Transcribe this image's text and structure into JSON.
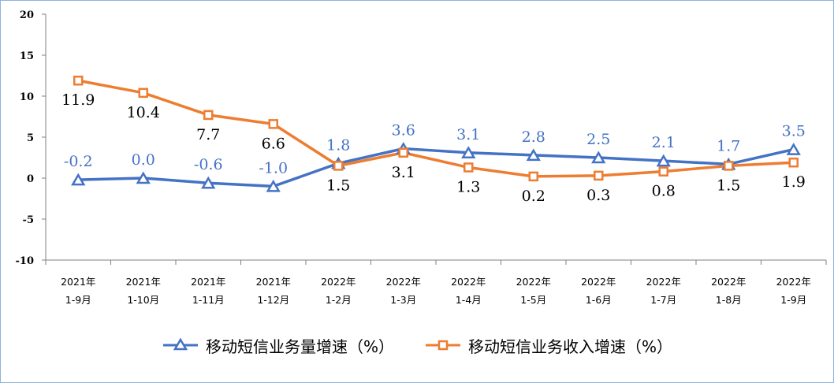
{
  "chart_data": {
    "type": "line",
    "categories": [
      [
        "2021年",
        "1-9月"
      ],
      [
        "2021年",
        "1-10月"
      ],
      [
        "2021年",
        "1-11月"
      ],
      [
        "2021年",
        "1-12月"
      ],
      [
        "2022年",
        "1-2月"
      ],
      [
        "2022年",
        "1-3月"
      ],
      [
        "2022年",
        "1-4月"
      ],
      [
        "2022年",
        "1-5月"
      ],
      [
        "2022年",
        "1-6月"
      ],
      [
        "2022年",
        "1-7月"
      ],
      [
        "2022年",
        "1-8月"
      ],
      [
        "2022年",
        "1-9月"
      ]
    ],
    "series": [
      {
        "name": "移动短信业务量增速（%）",
        "values": [
          -0.2,
          0.0,
          -0.6,
          -1.0,
          1.8,
          3.6,
          3.1,
          2.8,
          2.5,
          2.1,
          1.7,
          3.5
        ],
        "labels": [
          "-0.2",
          "0.0",
          "-0.6",
          "-1.0",
          "1.8",
          "3.6",
          "3.1",
          "2.8",
          "2.5",
          "2.1",
          "1.7",
          "3.5"
        ],
        "color": "#4472c4",
        "marker": "triangle"
      },
      {
        "name": "移动短信业务收入增速（%）",
        "values": [
          11.9,
          10.4,
          7.7,
          6.6,
          1.5,
          3.1,
          1.3,
          0.2,
          0.3,
          0.8,
          1.5,
          1.9
        ],
        "labels": [
          "11.9",
          "10.4",
          "7.7",
          "6.6",
          "1.5",
          "3.1",
          "1.3",
          "0.2",
          "0.3",
          "0.8",
          "1.5",
          "1.9"
        ],
        "color": "#ed7d31",
        "marker": "square"
      }
    ],
    "ylim": [
      -10,
      20
    ],
    "yticks": [
      "20",
      "15",
      "10",
      "5",
      "0",
      "-5",
      "-10"
    ],
    "grid": false,
    "legend_position": "bottom"
  }
}
